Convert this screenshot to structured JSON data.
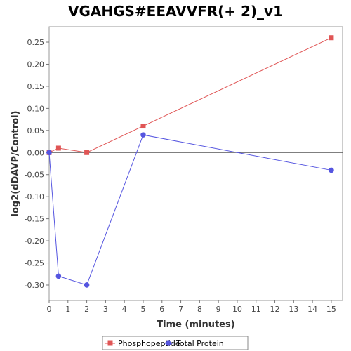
{
  "chart_data": {
    "type": "line",
    "title": "VGAHGS#EEAVVFR(+ 2)_v1",
    "xlabel": "Time (minutes)",
    "ylabel": "log2(dDAVP/Control)",
    "xlim": [
      0,
      15.6
    ],
    "ylim": [
      -0.335,
      0.285
    ],
    "xticks": [
      0,
      1,
      2,
      3,
      4,
      5,
      6,
      7,
      8,
      9,
      10,
      11,
      12,
      13,
      14,
      15
    ],
    "yticks": [
      -0.3,
      -0.25,
      -0.2,
      -0.15,
      -0.1,
      -0.05,
      0.0,
      0.05,
      0.1,
      0.15,
      0.2,
      0.25
    ],
    "ytick_labels": [
      "-0.30",
      "-0.25",
      "-0.20",
      "-0.15",
      "-0.10",
      "-0.05",
      "0.00",
      "0.05",
      "0.10",
      "0.15",
      "0.20",
      "0.25"
    ],
    "zero_line": true,
    "grid": false,
    "legend_position": "bottom",
    "series": [
      {
        "name": "Phosphopeptide",
        "color": "#e05555",
        "marker": "square",
        "x": [
          0,
          0.5,
          2,
          5,
          15
        ],
        "y": [
          0.0,
          0.01,
          0.0,
          0.06,
          0.26
        ]
      },
      {
        "name": "Total Protein",
        "color": "#5555e0",
        "marker": "circle",
        "x": [
          0,
          0.5,
          2,
          5,
          15
        ],
        "y": [
          0.0,
          -0.28,
          -0.3,
          0.04,
          -0.04
        ]
      }
    ]
  }
}
